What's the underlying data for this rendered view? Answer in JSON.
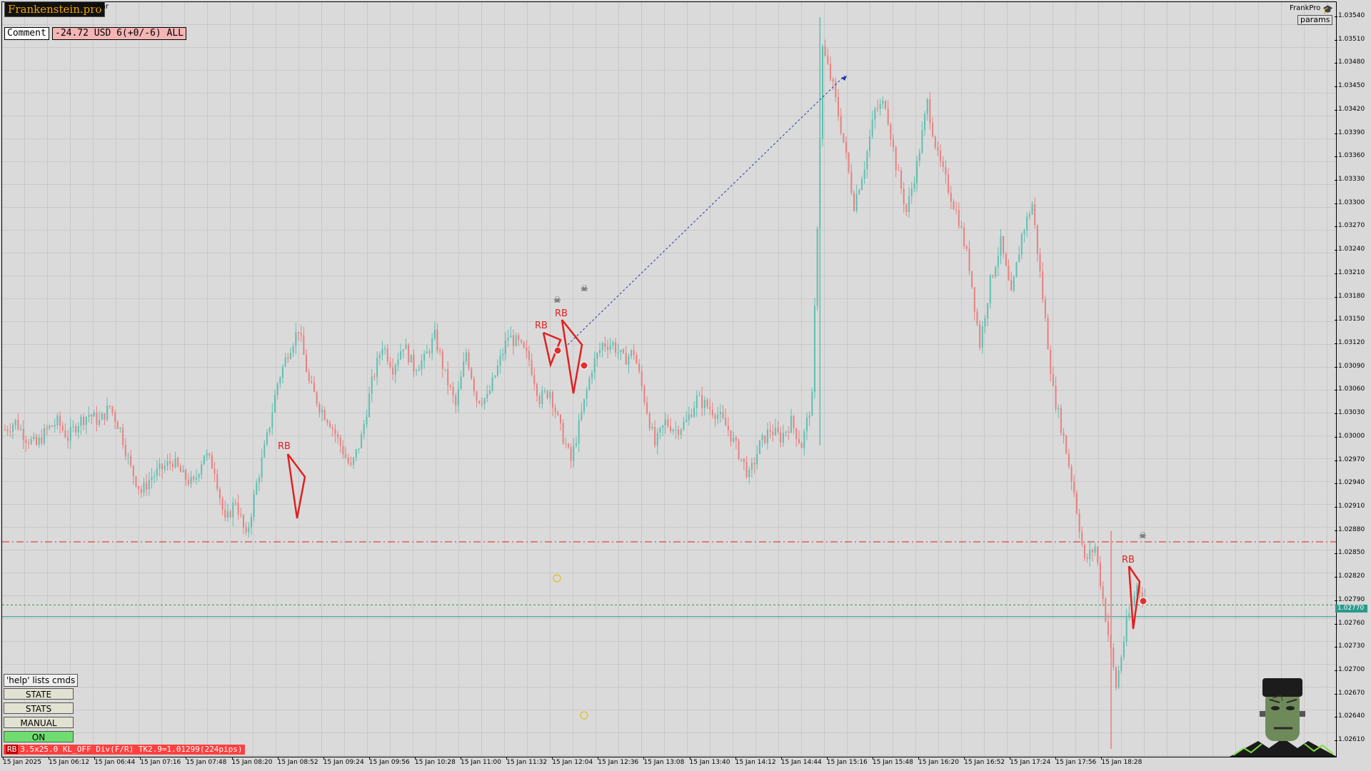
{
  "header": {
    "brand": "Frankenstein.pro",
    "symbol_text": "ollar",
    "comment_label": "Comment",
    "pnl_text": "-24.72 USD 6(+0/-6) ALL",
    "account_name": "FrankPro",
    "params_label": "params"
  },
  "panel": {
    "help_text": "'help' lists cmds",
    "buttons": [
      "STATE",
      "STATS",
      "MANUAL",
      "ON"
    ]
  },
  "status_bar": {
    "tag": "RB",
    "text": "3.5x25.0 KL_OFF Div(F/R) TK2.9=1.01299(224pips)"
  },
  "price_scale": {
    "labels": [
      "1.03540",
      "1.03510",
      "1.03480",
      "1.03450",
      "1.03420",
      "1.03390",
      "1.03360",
      "1.03330",
      "1.03300",
      "1.03270",
      "1.03240",
      "1.03210",
      "1.03180",
      "1.03150",
      "1.03120",
      "1.03090",
      "1.03060",
      "1.03030",
      "1.03000",
      "1.02970",
      "1.02940",
      "1.02910",
      "1.02880",
      "1.02850",
      "1.02820",
      "1.02790",
      "1.02760",
      "1.02730",
      "1.02700",
      "1.02670",
      "1.02640",
      "1.02610"
    ],
    "current_price": "1.02770"
  },
  "time_scale": {
    "labels": [
      "15 Jan 2025",
      "15 Jan 06:12",
      "15 Jan 06:44",
      "15 Jan 07:16",
      "15 Jan 07:48",
      "15 Jan 08:20",
      "15 Jan 08:52",
      "15 Jan 09:24",
      "15 Jan 09:56",
      "15 Jan 10:28",
      "15 Jan 11:00",
      "15 Jan 11:32",
      "15 Jan 12:04",
      "15 Jan 12:36",
      "15 Jan 13:08",
      "15 Jan 13:40",
      "15 Jan 14:12",
      "15 Jan 14:44",
      "15 Jan 15:16",
      "15 Jan 15:48",
      "15 Jan 16:20",
      "15 Jan 16:52",
      "15 Jan 17:24",
      "15 Jan 17:56",
      "15 Jan 18:28"
    ]
  },
  "chart_data": {
    "type": "line",
    "ylim": [
      1.0259,
      1.0355
    ],
    "series": [
      {
        "values": [
          1.0301,
          1.0302,
          1.03,
          1.0299,
          1.0301,
          1.0302,
          1.03,
          1.0302,
          1.0303,
          1.0302,
          1.0304,
          1.0301,
          1.0296,
          1.0293,
          1.0295,
          1.0296,
          1.0297,
          1.0295,
          1.0294,
          1.0298,
          1.0296,
          1.0289,
          1.0292,
          1.0287,
          1.0294,
          1.03,
          1.0307,
          1.0311,
          1.0314,
          1.0307,
          1.0304,
          1.0302,
          1.0299,
          1.0296,
          1.03,
          1.0307,
          1.0312,
          1.0309,
          1.0312,
          1.0309,
          1.031,
          1.0313,
          1.0308,
          1.0304,
          1.0311,
          1.0305,
          1.0305,
          1.0309,
          1.0313,
          1.0312,
          1.031,
          1.0305,
          1.0306,
          1.0301,
          1.0297,
          1.0303,
          1.0309,
          1.0312,
          1.0312,
          1.031,
          1.0311,
          1.0305,
          1.0299,
          1.0302,
          1.0301,
          1.0302,
          1.0305,
          1.0304,
          1.0303,
          1.0301,
          1.0298,
          1.0295,
          1.0299,
          1.0301,
          1.03,
          1.0302,
          1.0299,
          1.0305,
          1.035,
          1.0345,
          1.0338,
          1.033,
          1.0335,
          1.0342,
          1.0343,
          1.0335,
          1.0329,
          1.0335,
          1.0343,
          1.0336,
          1.0332,
          1.0328,
          1.0322,
          1.0312,
          1.032,
          1.0325,
          1.0318,
          1.0326,
          1.033,
          1.0318,
          1.0306,
          1.03,
          1.0293,
          1.0284,
          1.0286,
          1.0277,
          1.0268,
          1.0276,
          1.0281,
          1.0279
        ]
      }
    ],
    "levels": [
      {
        "name": "red-dashdot",
        "value": 1.02866,
        "color": "#e02020"
      },
      {
        "name": "green-dotted",
        "value": 1.02785,
        "color": "#2a9a4a"
      },
      {
        "name": "teal-current",
        "value": 1.0277,
        "color": "#2a9a8a"
      }
    ]
  },
  "annotations": {
    "rb_label": "RB"
  },
  "colors": {
    "bull": "#5fbfb0",
    "bear": "#e88080",
    "accent_red": "#e02020"
  }
}
